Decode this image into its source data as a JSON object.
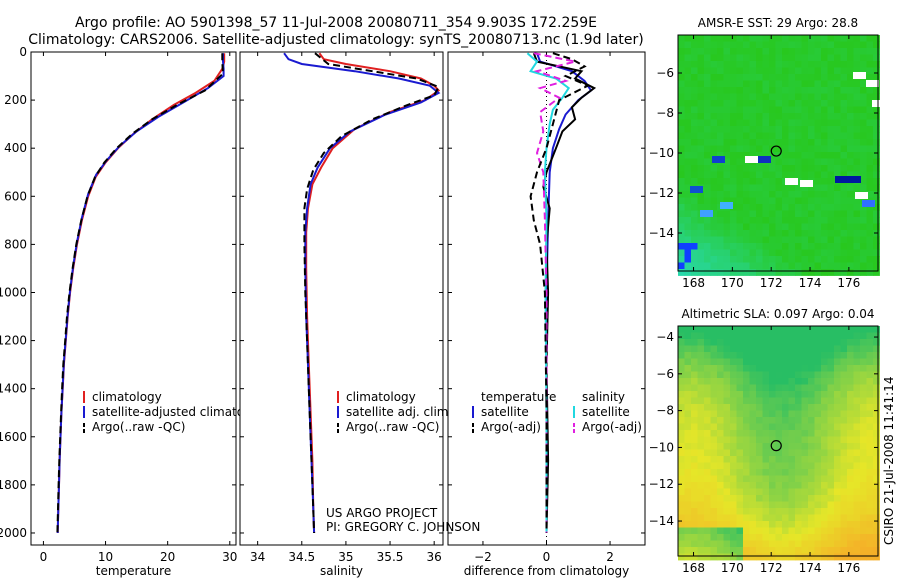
{
  "title_line1": "Argo profile: AO 5901398_57 11-Jul-2008 20080711_354 9.903S 172.259E",
  "title_line2": "Climatology: CARS2006. Satellite-adjusted climatology: synTS_20080713.nc (1.9d later)",
  "footer_project": "US ARGO PROJECT",
  "footer_pi": "PI: GREGORY C. JOHNSON",
  "side_stamp": "CSIRO 21-Jul-2008 11:41:14",
  "colors": {
    "climatology": "#e02020",
    "satellite": "#1a1ad0",
    "argo": "#000000",
    "sat_salinity": "#20d8e0",
    "argo_salinity_adj": "#e020e0"
  },
  "chart_data": [
    {
      "type": "line",
      "id": "temperature",
      "xlabel": "temperature",
      "xlim": [
        -2,
        31
      ],
      "ylim": [
        2050,
        0
      ],
      "x_ticks": [
        0,
        10,
        20,
        30
      ],
      "x_tick_labels": [
        "0",
        "10",
        "20",
        "30"
      ],
      "y_ticks": [
        0,
        200,
        400,
        600,
        800,
        1000,
        1200,
        1400,
        1600,
        1800,
        2000
      ],
      "y_tick_labels": [
        "0",
        "200",
        "400",
        "600",
        "800",
        "1000",
        "1200",
        "1400",
        "1600",
        "1800",
        "2000"
      ],
      "legend": [
        "climatology",
        "satellite-adjusted climatology",
        "Argo(..raw -QC)"
      ],
      "series": [
        {
          "name": "climatology",
          "color": "#e02020",
          "dash": false,
          "points": [
            [
              29.1,
              5
            ],
            [
              29.1,
              40
            ],
            [
              28.8,
              70
            ],
            [
              27.5,
              120
            ],
            [
              24.5,
              170
            ],
            [
              21.0,
              220
            ],
            [
              17.5,
              280
            ],
            [
              14.5,
              340
            ],
            [
              12.0,
              400
            ],
            [
              10.0,
              460
            ],
            [
              8.4,
              520
            ],
            [
              7.2,
              600
            ],
            [
              6.2,
              700
            ],
            [
              5.4,
              800
            ],
            [
              4.8,
              900
            ],
            [
              4.3,
              1000
            ],
            [
              3.9,
              1100
            ],
            [
              3.6,
              1200
            ],
            [
              3.3,
              1300
            ],
            [
              3.1,
              1400
            ],
            [
              2.9,
              1500
            ],
            [
              2.75,
              1600
            ],
            [
              2.6,
              1700
            ],
            [
              2.5,
              1800
            ],
            [
              2.4,
              1900
            ],
            [
              2.3,
              2000
            ]
          ]
        },
        {
          "name": "satellite-adjusted climatology",
          "color": "#1a1ad0",
          "dash": false,
          "points": [
            [
              28.9,
              5
            ],
            [
              28.9,
              40
            ],
            [
              29.0,
              70
            ],
            [
              29.0,
              100
            ],
            [
              26.5,
              150
            ],
            [
              22.5,
              210
            ],
            [
              18.5,
              270
            ],
            [
              15.0,
              330
            ],
            [
              12.3,
              390
            ],
            [
              10.2,
              450
            ],
            [
              8.5,
              510
            ],
            [
              7.2,
              590
            ],
            [
              6.2,
              690
            ],
            [
              5.4,
              790
            ],
            [
              4.8,
              890
            ],
            [
              4.3,
              990
            ],
            [
              3.9,
              1090
            ],
            [
              3.6,
              1190
            ],
            [
              3.3,
              1290
            ],
            [
              3.1,
              1390
            ],
            [
              2.9,
              1500
            ],
            [
              2.75,
              1600
            ],
            [
              2.6,
              1700
            ],
            [
              2.5,
              1800
            ],
            [
              2.4,
              1900
            ],
            [
              2.3,
              2000
            ]
          ]
        },
        {
          "name": "Argo(..raw -QC)",
          "color": "#000000",
          "dash": true,
          "points": [
            [
              28.8,
              5
            ],
            [
              28.8,
              40
            ],
            [
              28.9,
              90
            ],
            [
              26.0,
              160
            ],
            [
              21.5,
              220
            ],
            [
              17.5,
              280
            ],
            [
              14.3,
              340
            ],
            [
              11.8,
              400
            ],
            [
              9.8,
              460
            ],
            [
              8.3,
              520
            ],
            [
              7.1,
              600
            ],
            [
              6.1,
              700
            ],
            [
              5.3,
              800
            ],
            [
              4.7,
              900
            ],
            [
              4.2,
              1000
            ],
            [
              3.8,
              1100
            ],
            [
              3.5,
              1200
            ],
            [
              3.2,
              1300
            ],
            [
              3.0,
              1400
            ],
            [
              2.85,
              1500
            ],
            [
              2.7,
              1600
            ],
            [
              2.55,
              1700
            ],
            [
              2.45,
              1800
            ],
            [
              2.35,
              1900
            ],
            [
              2.25,
              2000
            ]
          ]
        }
      ]
    },
    {
      "type": "line",
      "id": "salinity",
      "xlabel": "salinity",
      "xlim": [
        33.8,
        36.1
      ],
      "ylim": [
        2050,
        0
      ],
      "x_ticks": [
        34,
        34.5,
        35,
        35.5,
        36
      ],
      "x_tick_labels": [
        "34",
        "34.5",
        "35",
        "35.5",
        "36"
      ],
      "legend": [
        "climatology",
        "satellite adj. clim.",
        "Argo(..raw -QC)"
      ],
      "series": [
        {
          "name": "climatology",
          "color": "#e02020",
          "dash": false,
          "points": [
            [
              34.7,
              5
            ],
            [
              34.75,
              30
            ],
            [
              35.0,
              50
            ],
            [
              35.5,
              80
            ],
            [
              35.85,
              110
            ],
            [
              36.0,
              140
            ],
            [
              36.05,
              160
            ],
            [
              35.9,
              200
            ],
            [
              35.5,
              250
            ],
            [
              35.1,
              320
            ],
            [
              34.85,
              400
            ],
            [
              34.72,
              480
            ],
            [
              34.62,
              550
            ],
            [
              34.57,
              650
            ],
            [
              34.55,
              750
            ],
            [
              34.55,
              900
            ],
            [
              34.56,
              1100
            ],
            [
              34.58,
              1300
            ],
            [
              34.6,
              1500
            ],
            [
              34.62,
              1700
            ],
            [
              34.63,
              1900
            ],
            [
              34.64,
              2000
            ]
          ]
        },
        {
          "name": "satellite adj. clim.",
          "color": "#1a1ad0",
          "dash": false,
          "points": [
            [
              34.3,
              5
            ],
            [
              34.35,
              30
            ],
            [
              34.5,
              50
            ],
            [
              35.1,
              80
            ],
            [
              35.6,
              110
            ],
            [
              35.95,
              140
            ],
            [
              36.05,
              170
            ],
            [
              35.85,
              210
            ],
            [
              35.45,
              260
            ],
            [
              35.05,
              330
            ],
            [
              34.82,
              400
            ],
            [
              34.68,
              480
            ],
            [
              34.6,
              550
            ],
            [
              34.56,
              650
            ],
            [
              34.54,
              750
            ],
            [
              34.54,
              900
            ],
            [
              34.55,
              1100
            ],
            [
              34.57,
              1300
            ],
            [
              34.59,
              1500
            ],
            [
              34.61,
              1700
            ],
            [
              34.63,
              1900
            ],
            [
              34.64,
              2000
            ]
          ]
        },
        {
          "name": "Argo(..raw -QC)",
          "color": "#000000",
          "dash": true,
          "points": [
            [
              34.65,
              5
            ],
            [
              34.8,
              50
            ],
            [
              35.3,
              80
            ],
            [
              35.8,
              110
            ],
            [
              36.05,
              145
            ],
            [
              36.0,
              180
            ],
            [
              35.7,
              220
            ],
            [
              35.3,
              280
            ],
            [
              34.95,
              350
            ],
            [
              34.75,
              420
            ],
            [
              34.63,
              490
            ],
            [
              34.56,
              570
            ],
            [
              34.53,
              650
            ],
            [
              34.53,
              800
            ],
            [
              34.54,
              1000
            ],
            [
              34.56,
              1200
            ],
            [
              34.58,
              1400
            ],
            [
              34.6,
              1600
            ],
            [
              34.62,
              1800
            ],
            [
              34.64,
              2000
            ]
          ]
        }
      ]
    },
    {
      "type": "line",
      "id": "difference",
      "xlabel": "difference from climatology",
      "xlim": [
        -3.1,
        3.1
      ],
      "ylim": [
        2050,
        0
      ],
      "x_ticks": [
        -2,
        0,
        2
      ],
      "x_tick_labels": [
        "−2",
        "0",
        "2"
      ],
      "legend_temperature_title": "temperature",
      "legend_salinity_title": "salinity",
      "legend": [
        "satellite",
        "Argo(-adj)",
        "satellite",
        "Argo(-adj)"
      ],
      "series": [
        {
          "name": "temperature satellite",
          "color": "#1a1ad0",
          "dash": false,
          "points": [
            [
              -0.3,
              5
            ],
            [
              -0.2,
              40
            ],
            [
              0.8,
              80
            ],
            [
              1.2,
              120
            ],
            [
              1.4,
              160
            ],
            [
              1.0,
              200
            ],
            [
              0.6,
              260
            ],
            [
              0.4,
              320
            ],
            [
              0.2,
              400
            ],
            [
              0.1,
              500
            ],
            [
              0.05,
              700
            ],
            [
              0.0,
              1000
            ],
            [
              0.0,
              1500
            ],
            [
              0.0,
              2000
            ]
          ]
        },
        {
          "name": "temperature Argo(-adj)",
          "color": "#000000",
          "dash": false,
          "points": [
            [
              -0.4,
              5
            ],
            [
              -0.3,
              40
            ],
            [
              1.1,
              80
            ],
            [
              0.9,
              110
            ],
            [
              1.5,
              150
            ],
            [
              1.1,
              190
            ],
            [
              0.8,
              230
            ],
            [
              0.9,
              280
            ],
            [
              0.5,
              330
            ],
            [
              0.3,
              400
            ],
            [
              0.0,
              500
            ],
            [
              -0.1,
              560
            ],
            [
              0.1,
              650
            ],
            [
              0.0,
              800
            ],
            [
              0.05,
              1000
            ],
            [
              0.0,
              1300
            ],
            [
              0.05,
              1700
            ],
            [
              0.0,
              2000
            ]
          ]
        },
        {
          "name": "salinity satellite",
          "color": "#20d8e0",
          "dash": false,
          "points": [
            [
              -0.6,
              5
            ],
            [
              -0.3,
              40
            ],
            [
              -0.5,
              80
            ],
            [
              0.3,
              110
            ],
            [
              0.7,
              150
            ],
            [
              0.5,
              190
            ],
            [
              0.2,
              240
            ],
            [
              0.1,
              300
            ],
            [
              0.0,
              400
            ],
            [
              -0.05,
              500
            ],
            [
              0.0,
              700
            ],
            [
              -0.03,
              1000
            ],
            [
              0.0,
              1500
            ],
            [
              0.0,
              2000
            ]
          ]
        },
        {
          "name": "salinity Argo(-adj)",
          "color": "#e020e0",
          "dash": true,
          "points": [
            [
              -0.4,
              5
            ],
            [
              0.9,
              40
            ],
            [
              -0.3,
              80
            ],
            [
              0.6,
              120
            ],
            [
              -0.2,
              150
            ],
            [
              0.4,
              190
            ],
            [
              -0.2,
              250
            ],
            [
              -0.1,
              330
            ],
            [
              -0.3,
              420
            ],
            [
              -0.1,
              500
            ],
            [
              -0.05,
              700
            ],
            [
              0.0,
              1000
            ],
            [
              0.0,
              2000
            ]
          ]
        },
        {
          "name": "temperature Argo dashed",
          "color": "#000000",
          "dash": true,
          "points": [
            [
              0.2,
              5
            ],
            [
              0.8,
              30
            ],
            [
              1.2,
              60
            ],
            [
              0.6,
              100
            ],
            [
              1.3,
              140
            ],
            [
              0.4,
              200
            ],
            [
              0.2,
              300
            ],
            [
              0.0,
              400
            ],
            [
              -0.3,
              500
            ],
            [
              -0.5,
              600
            ],
            [
              -0.4,
              700
            ],
            [
              -0.2,
              800
            ],
            [
              -0.05,
              1000
            ],
            [
              0.0,
              1500
            ],
            [
              0.0,
              2000
            ]
          ]
        }
      ]
    },
    {
      "type": "heatmap",
      "id": "sst_map",
      "title": "AMSR-E SST: 29 Argo: 28.8",
      "xlim": [
        167.2,
        177.5
      ],
      "ylim": [
        -15.9,
        -4.1
      ],
      "x_ticks": [
        168,
        170,
        172,
        174,
        176
      ],
      "x_tick_labels": [
        "168",
        "170",
        "172",
        "174",
        "176"
      ],
      "y_ticks": [
        -6,
        -8,
        -10,
        -12,
        -14
      ],
      "y_tick_labels": [
        "−6",
        "−8",
        "−10",
        "−12",
        "−14"
      ],
      "profile_location": [
        172.259,
        -9.903
      ]
    },
    {
      "type": "heatmap",
      "id": "sla_map",
      "title": "Altimetric SLA: 0.097 Argo: 0.04",
      "xlim": [
        167.2,
        177.5
      ],
      "ylim": [
        -15.9,
        -3.4
      ],
      "x_ticks": [
        168,
        170,
        172,
        174,
        176
      ],
      "x_tick_labels": [
        "168",
        "170",
        "172",
        "174",
        "176"
      ],
      "y_ticks": [
        -4,
        -6,
        -8,
        -10,
        -12,
        -14
      ],
      "y_tick_labels": [
        "−4",
        "−6",
        "−8",
        "−10",
        "−12",
        "−14"
      ],
      "profile_location": [
        172.259,
        -9.903
      ]
    }
  ]
}
